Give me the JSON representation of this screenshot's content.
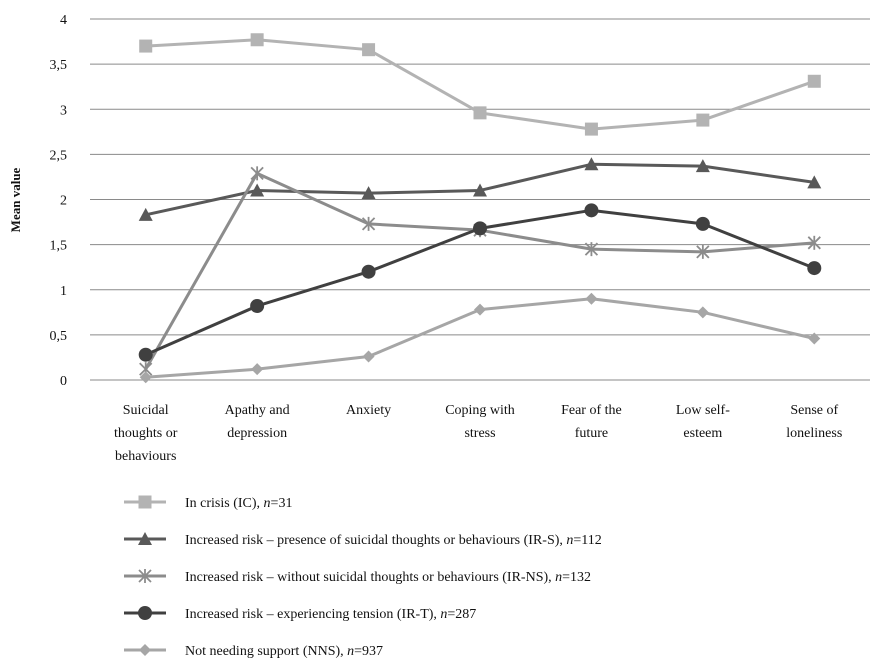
{
  "chart_data": {
    "type": "line",
    "ylabel": "Mean value",
    "ylim": [
      0,
      4
    ],
    "yticks": [
      "0",
      "0,5",
      "1",
      "1,5",
      "2",
      "2,5",
      "3",
      "3,5",
      "4"
    ],
    "grid": true,
    "legend_position": "bottom",
    "categories": [
      [
        "Suicidal",
        "thoughts or",
        "behaviours"
      ],
      [
        "Apathy and",
        "depression"
      ],
      [
        "Anxiety"
      ],
      [
        "Coping with",
        "stress"
      ],
      [
        "Fear of the",
        "future"
      ],
      [
        "Low self-",
        "esteem"
      ],
      [
        "Sense of",
        "loneliness"
      ]
    ],
    "series": [
      {
        "label": "In crisis (IC), ",
        "n": "=31",
        "color": "#b3b3b3",
        "marker": "square",
        "values": [
          3.7,
          3.77,
          3.66,
          2.96,
          2.78,
          2.88,
          3.31
        ]
      },
      {
        "label": "Increased risk – presence of suicidal thoughts or behaviours (IR-S), ",
        "n": "=112",
        "color": "#595959",
        "marker": "triangle",
        "values": [
          1.83,
          2.1,
          2.07,
          2.1,
          2.39,
          2.37,
          2.19
        ]
      },
      {
        "label": "Increased risk – without suicidal thoughts or behaviours (IR-NS), ",
        "n": "=132",
        "color": "#8c8c8c",
        "marker": "star",
        "values": [
          0.12,
          2.29,
          1.73,
          1.66,
          1.45,
          1.42,
          1.52
        ]
      },
      {
        "label": "Increased risk – experiencing tension (IR-T), ",
        "n": "=287",
        "color": "#404040",
        "marker": "circle",
        "values": [
          0.28,
          0.82,
          1.2,
          1.68,
          1.88,
          1.73,
          1.24
        ]
      },
      {
        "label": "Not needing support (NNS), ",
        "n": "=937",
        "color": "#a6a6a6",
        "marker": "diamond",
        "values": [
          0.03,
          0.12,
          0.26,
          0.78,
          0.9,
          0.75,
          0.46
        ]
      }
    ]
  }
}
